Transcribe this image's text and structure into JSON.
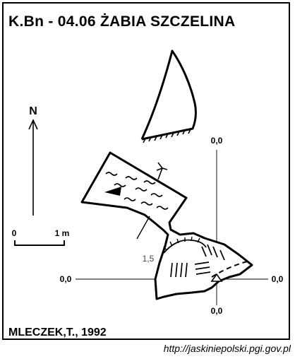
{
  "header": {
    "title": "K.Bn - 04.06  ŻABIA SZCZELINA"
  },
  "north_arrow": {
    "label": "N"
  },
  "scale_bar": {
    "start_label": "0",
    "end_label": "1 m"
  },
  "survey_point": {
    "depth_label": "1,5"
  },
  "axis_labels": {
    "top": "0,0",
    "left": "0,0",
    "right": "0,0",
    "bottom": "0,0"
  },
  "footer": {
    "author": "MLECZEK,T., 1992",
    "url": "http://jaskiniepolski.pgi.gov.pl"
  },
  "colors": {
    "ink": "#000000",
    "paper": "#ffffff",
    "label_gray": "#444444"
  }
}
